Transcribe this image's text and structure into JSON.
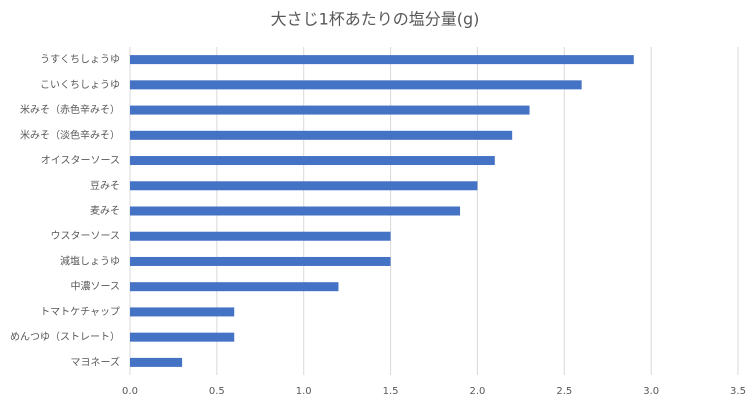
{
  "chart_data": {
    "type": "bar",
    "orientation": "horizontal",
    "title": "大さじ1杯あたりの塩分量(g)",
    "categories": [
      "うすくちしょうゆ",
      "こいくちしょうゆ",
      "米みそ（赤色辛みそ）",
      "米みそ（淡色辛みそ）",
      "オイスターソース",
      "豆みそ",
      "麦みそ",
      "ウスターソース",
      "減塩しょうゆ",
      "中濃ソース",
      "トマトケチャップ",
      "めんつゆ（ストレート）",
      "マヨネーズ"
    ],
    "values": [
      2.9,
      2.6,
      2.3,
      2.2,
      2.1,
      2.0,
      1.9,
      1.5,
      1.5,
      1.2,
      0.6,
      0.6,
      0.3
    ],
    "color": "#4472c4",
    "xlim": [
      0,
      3.5
    ],
    "xticks": [
      {
        "value": 0,
        "label": "0.0"
      },
      0.5,
      {
        "value": 1,
        "label": "1.0"
      },
      1.5,
      {
        "value": 2,
        "label": "2.0"
      },
      2.5,
      {
        "value": 3,
        "label": "3.0"
      },
      3.5
    ],
    "grid": true
  }
}
